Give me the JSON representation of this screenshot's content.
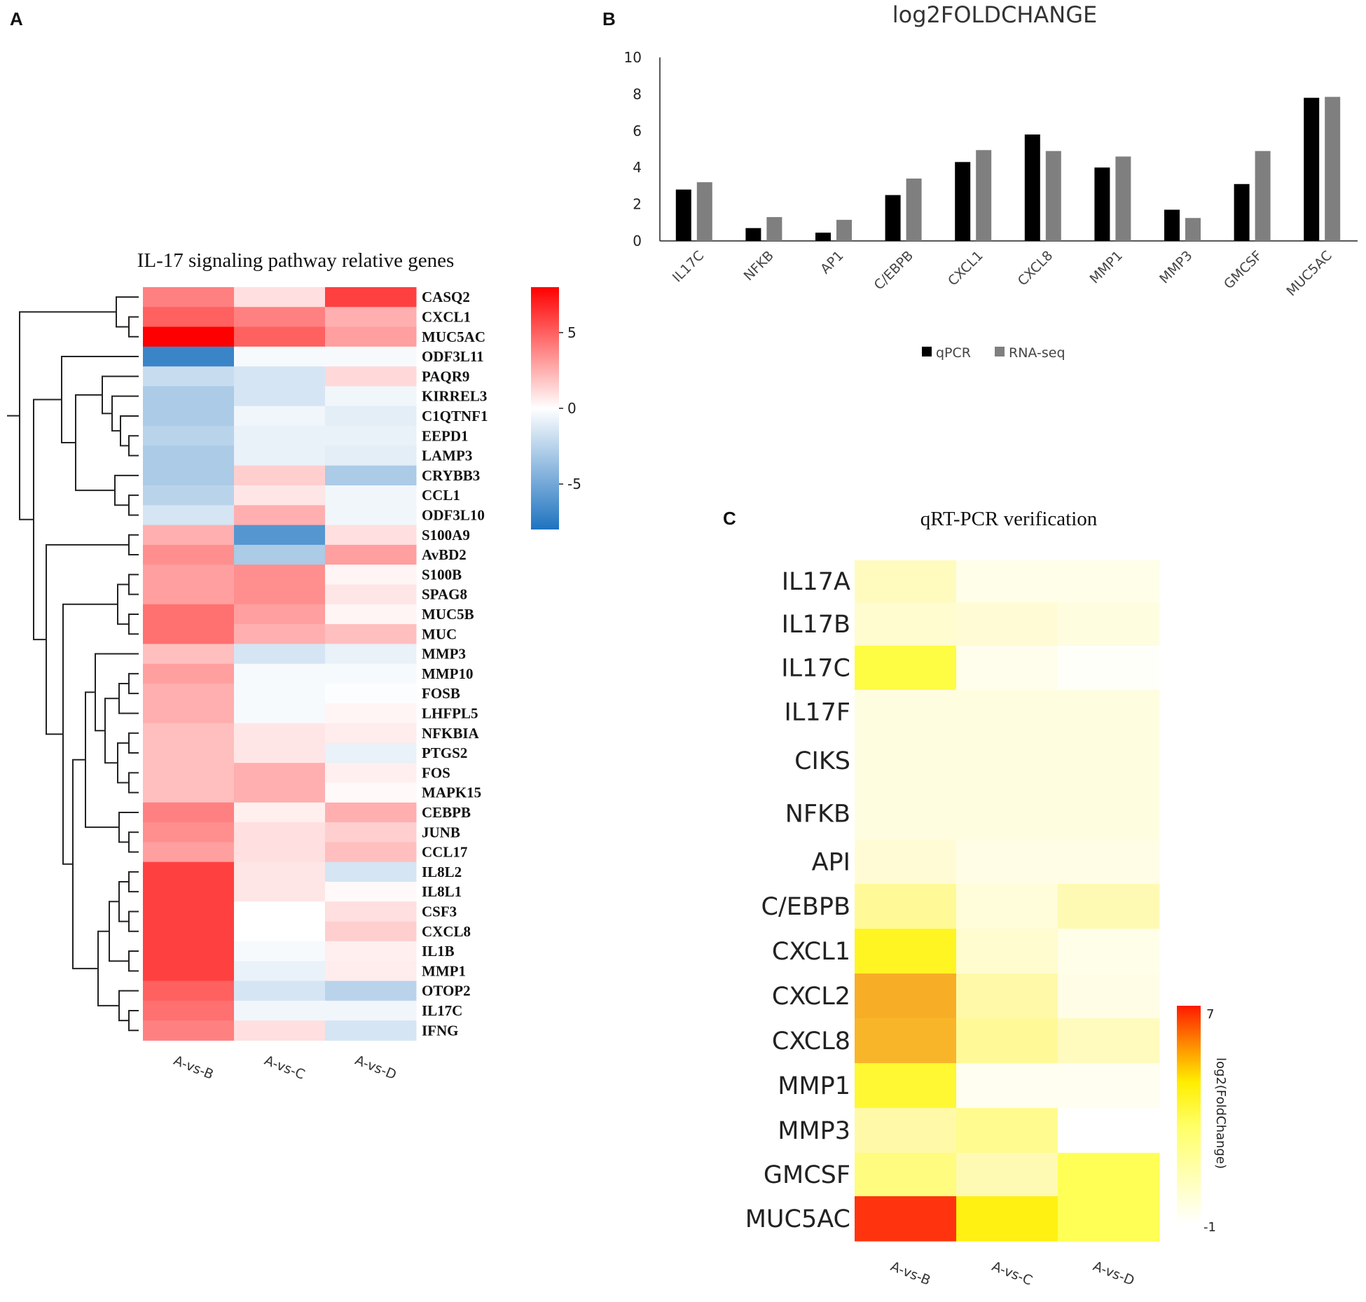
{
  "panel_letters": {
    "a": "A",
    "b": "B",
    "c": "C"
  },
  "chart_data": [
    {
      "id": "A",
      "type": "heatmap",
      "title": "IL-17 signaling pathway relative genes",
      "columns": [
        "A-vs-B",
        "A-vs-C",
        "A-vs-D"
      ],
      "rows": [
        "CASQ2",
        "CXCL1",
        "MUC5AC",
        "ODF3L11",
        "PAQR9",
        "KIRREL3",
        "C1QTNF1",
        "EEPD1",
        "LAMP3",
        "CRYBB3",
        "CCL1",
        "ODF3L10",
        "S100A9",
        "AvBD2",
        "S100B",
        "SPAG8",
        "MUC5B",
        "MUC",
        "MMP3",
        "MMP10",
        "FOSB",
        "LHFPL5",
        "NFKBIA",
        "PTGS2",
        "FOS",
        "MAPK15",
        "CEBPB",
        "JUNB",
        "CCL17",
        "IL8L2",
        "IL8L1",
        "CSF3",
        "CXCL8",
        "IL1B",
        "MMP1",
        "OTOP2",
        "IL17C",
        "IFNG"
      ],
      "values": [
        [
          4.0,
          1.0,
          6.0
        ],
        [
          5.0,
          4.0,
          2.5
        ],
        [
          8.0,
          5.0,
          3.0
        ],
        [
          -7.0,
          -0.3,
          -0.3
        ],
        [
          -2.0,
          -1.5,
          1.2
        ],
        [
          -3.0,
          -1.5,
          -0.5
        ],
        [
          -3.0,
          -0.5,
          -1.0
        ],
        [
          -2.5,
          -0.8,
          -0.8
        ],
        [
          -3.0,
          -0.8,
          -1.0
        ],
        [
          -3.0,
          1.5,
          -3.0
        ],
        [
          -2.5,
          0.8,
          -0.5
        ],
        [
          -1.5,
          2.5,
          -0.5
        ],
        [
          2.5,
          -6.0,
          1.0
        ],
        [
          3.5,
          -3.0,
          3.0
        ],
        [
          3.0,
          3.5,
          0.3
        ],
        [
          3.0,
          3.5,
          0.8
        ],
        [
          4.5,
          3.0,
          0.3
        ],
        [
          4.5,
          2.5,
          2.0
        ],
        [
          2.0,
          -1.5,
          -0.8
        ],
        [
          3.0,
          -0.3,
          -0.3
        ],
        [
          2.5,
          -0.3,
          -0.1
        ],
        [
          2.5,
          -0.3,
          0.3
        ],
        [
          2.0,
          0.8,
          0.6
        ],
        [
          2.0,
          0.8,
          -0.8
        ],
        [
          2.0,
          2.5,
          0.5
        ],
        [
          2.0,
          2.5,
          0.2
        ],
        [
          4.0,
          0.5,
          2.5
        ],
        [
          3.5,
          1.0,
          1.5
        ],
        [
          3.0,
          1.0,
          2.0
        ],
        [
          6.0,
          0.8,
          -1.5
        ],
        [
          6.0,
          0.8,
          0.2
        ],
        [
          6.0,
          0.0,
          1.0
        ],
        [
          6.0,
          0.0,
          1.5
        ],
        [
          6.0,
          -0.3,
          0.5
        ],
        [
          6.0,
          -0.8,
          0.6
        ],
        [
          5.0,
          -1.5,
          -2.5
        ],
        [
          4.5,
          -0.5,
          -0.5
        ],
        [
          4.0,
          1.0,
          -1.5
        ]
      ],
      "colorbar": {
        "min": -8,
        "max": 8,
        "ticks": [
          "5",
          "0",
          "-5"
        ],
        "low_color": "#1e73c0",
        "mid_color": "#ffffff",
        "high_color": "#ff0000"
      }
    },
    {
      "id": "B",
      "type": "bar",
      "title": "log2FOLDCHANGE",
      "categories": [
        "IL17C",
        "NFKB",
        "AP1",
        "C/EBPB",
        "CXCL1",
        "CXCL8",
        "MMP1",
        "MMP3",
        "GMCSF",
        "MUC5AC"
      ],
      "series": [
        {
          "name": "qPCR",
          "color": "#000000",
          "values": [
            2.8,
            0.7,
            0.45,
            2.5,
            4.3,
            5.8,
            4.0,
            1.7,
            3.1,
            7.8
          ]
        },
        {
          "name": "RNA-seq",
          "color": "#7f7f7f",
          "values": [
            3.2,
            1.3,
            1.15,
            3.4,
            4.95,
            4.9,
            4.6,
            1.25,
            4.9,
            7.85
          ]
        }
      ],
      "ylim": [
        0,
        10
      ],
      "yticks": [
        "10",
        "8",
        "6",
        "4",
        "2",
        "0"
      ],
      "legend_position": "bottom"
    },
    {
      "id": "C",
      "type": "heatmap",
      "title": "qRT-PCR verification",
      "columns": [
        "A-vs-B",
        "A-vs-C",
        "A-vs-D"
      ],
      "rows": [
        "IL17A",
        "IL17B",
        "IL17C",
        "IL17F",
        "CIKS",
        "NFKB",
        "API",
        "C/EBPB",
        "CXCL1",
        "CXCL2",
        "CXCL8",
        "MMP1",
        "MMP3",
        "GMCSF",
        "MUC5AC"
      ],
      "values": [
        [
          0.6,
          -0.3,
          -0.3
        ],
        [
          0.3,
          0.2,
          0.0
        ],
        [
          2.2,
          -0.4,
          -0.8
        ],
        [
          0.0,
          0.0,
          0.0
        ],
        [
          0.0,
          0.0,
          0.0
        ],
        [
          0.0,
          0.0,
          0.0
        ],
        [
          0.2,
          -0.2,
          -0.2
        ],
        [
          1.2,
          0.1,
          0.8
        ],
        [
          2.6,
          0.3,
          -0.3
        ],
        [
          4.8,
          1.0,
          -0.2
        ],
        [
          4.6,
          1.2,
          0.6
        ],
        [
          2.4,
          -0.5,
          -0.5
        ],
        [
          1.0,
          1.3,
          -1.0
        ],
        [
          1.5,
          0.8,
          2.0
        ],
        [
          6.2,
          2.8,
          2.0
        ]
      ],
      "colorbar": {
        "label": "log2(FoldChange)",
        "min_label": "-1",
        "max_label": "7",
        "min": -1,
        "max": 7
      }
    }
  ]
}
